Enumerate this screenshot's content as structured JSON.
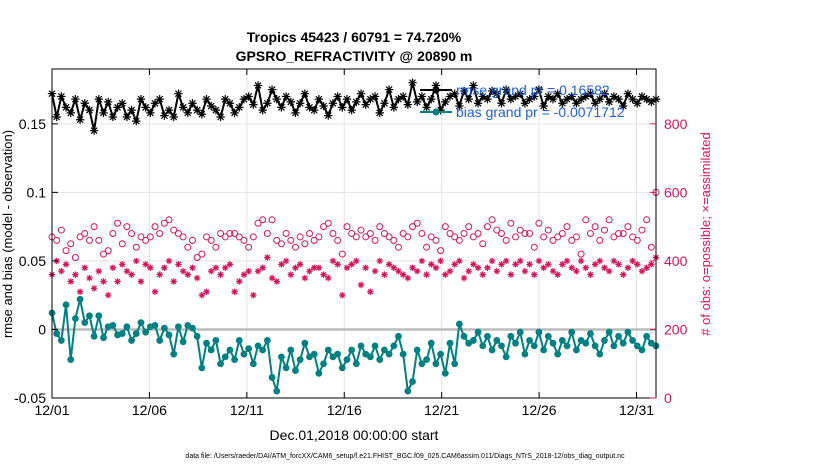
{
  "chart_data": {
    "type": "line",
    "title_lines": [
      "Tropics 45423 / 60791 = 74.720%",
      "GPSRO_REFRACTIVITY @ 20890 m"
    ],
    "xlabel": "Dec.01,2018 00:00:00 start",
    "ylabel_left": "rmse and bias (model - observation)",
    "ylabel_right": "# of obs: o=possible; ×=assimilated",
    "x_ticks": [
      "12/01",
      "12/06",
      "12/11",
      "12/16",
      "12/21",
      "12/26",
      "12/31"
    ],
    "x_tick_days": [
      0,
      5,
      10,
      15,
      20,
      25,
      30
    ],
    "xlim": [
      0,
      31
    ],
    "ylim_left": [
      -0.05,
      0.19
    ],
    "y_ticks_left": [
      -0.05,
      0,
      0.05,
      0.1,
      0.15
    ],
    "y_tick_labels_left": [
      "-0.05",
      "0",
      "0.05",
      "0.1",
      "0.15"
    ],
    "ylim_right": [
      0,
      960
    ],
    "y_ticks_right": [
      0,
      200,
      400,
      600,
      800
    ],
    "grid": true,
    "legend_position": "top-right",
    "legend": [
      {
        "label": "rmse grand pr = 0.16582",
        "color": "#000000"
      },
      {
        "label": "bias grand pr = -0.0071712",
        "color": "#008080"
      }
    ],
    "footnote": "data file: /Users/raeder/DAI/ATM_forcXX/CAM6_setup/f.e21.FHIST_BGC.f09_025.CAM6assim.011/Diags_NTrS_2018-12/obs_diag_output.nc",
    "series": [
      {
        "name": "rmse",
        "axis": "left",
        "color": "#000000",
        "marker": "star",
        "line": true,
        "values": [
          0.172,
          0.155,
          0.17,
          0.162,
          0.158,
          0.168,
          0.153,
          0.165,
          0.16,
          0.145,
          0.168,
          0.158,
          0.166,
          0.155,
          0.162,
          0.165,
          0.155,
          0.16,
          0.152,
          0.168,
          0.162,
          0.158,
          0.165,
          0.168,
          0.156,
          0.16,
          0.155,
          0.172,
          0.162,
          0.158,
          0.165,
          0.16,
          0.157,
          0.168,
          0.163,
          0.16,
          0.155,
          0.168,
          0.165,
          0.158,
          0.162,
          0.168,
          0.17,
          0.164,
          0.178,
          0.16,
          0.165,
          0.175,
          0.168,
          0.162,
          0.17,
          0.166,
          0.158,
          0.165,
          0.172,
          0.162,
          0.16,
          0.168,
          0.163,
          0.156,
          0.165,
          0.17,
          0.162,
          0.168,
          0.16,
          0.166,
          0.172,
          0.164,
          0.168,
          0.17,
          0.158,
          0.165,
          0.175,
          0.162,
          0.168,
          0.17,
          0.164,
          0.18,
          0.166,
          0.17,
          0.162,
          0.168,
          0.178,
          0.16,
          0.166,
          0.17,
          0.172,
          0.163,
          0.174,
          0.168,
          0.178,
          0.165,
          0.17,
          0.168,
          0.174,
          0.172,
          0.165,
          0.175,
          0.168,
          0.17,
          0.172,
          0.165,
          0.168,
          0.17,
          0.175,
          0.163,
          0.17,
          0.168,
          0.172,
          0.165,
          0.168,
          0.17,
          0.165,
          0.168,
          0.17,
          0.172,
          0.165,
          0.168,
          0.172,
          0.166,
          0.17,
          0.168,
          0.163,
          0.172,
          0.168,
          0.165,
          0.17,
          0.168,
          0.166,
          0.168
        ]
      },
      {
        "name": "bias",
        "axis": "left",
        "color": "#008080",
        "marker": "dot",
        "line": true,
        "values": [
          0.012,
          -0.003,
          -0.008,
          0.018,
          -0.022,
          0.008,
          0.022,
          0.005,
          0.01,
          -0.005,
          0.01,
          -0.006,
          0.002,
          0.003,
          -0.004,
          -0.003,
          0.002,
          -0.008,
          -0.003,
          0.005,
          -0.002,
          0.002,
          0.003,
          -0.008,
          0.001,
          -0.004,
          -0.018,
          0.002,
          -0.009,
          0.003,
          0.001,
          -0.005,
          -0.028,
          -0.01,
          -0.015,
          -0.008,
          -0.025,
          -0.02,
          -0.015,
          -0.022,
          -0.008,
          -0.018,
          -0.014,
          -0.025,
          -0.012,
          -0.015,
          -0.008,
          -0.035,
          -0.045,
          -0.02,
          -0.028,
          -0.015,
          -0.03,
          -0.022,
          -0.01,
          -0.02,
          -0.018,
          -0.032,
          -0.025,
          -0.015,
          -0.02,
          -0.018,
          -0.028,
          -0.022,
          -0.015,
          -0.025,
          -0.012,
          -0.018,
          -0.02,
          -0.012,
          -0.022,
          -0.015,
          -0.018,
          -0.012,
          -0.005,
          -0.018,
          -0.045,
          -0.038,
          -0.015,
          -0.025,
          -0.022,
          -0.01,
          -0.025,
          -0.018,
          -0.032,
          -0.01,
          -0.025,
          0.004,
          -0.005,
          -0.01,
          -0.008,
          -0.002,
          -0.012,
          -0.005,
          -0.015,
          -0.008,
          -0.012,
          -0.02,
          -0.005,
          -0.01,
          -0.002,
          -0.018,
          -0.008,
          -0.012,
          -0.002,
          -0.015,
          -0.005,
          -0.01,
          -0.018,
          -0.008,
          -0.012,
          -0.002,
          -0.015,
          -0.008,
          -0.01,
          -0.003,
          -0.012,
          -0.018,
          -0.008,
          -0.002,
          -0.012,
          -0.005,
          -0.01,
          -0.002,
          -0.008,
          -0.012,
          -0.015,
          -0.005,
          -0.01,
          -0.012
        ]
      },
      {
        "name": "possible",
        "axis": "right",
        "color": "#d4145a",
        "marker": "circle",
        "line": false,
        "values": [
          470,
          460,
          490,
          430,
          450,
          410,
          470,
          480,
          460,
          500,
          460,
          420,
          430,
          480,
          510,
          450,
          500,
          480,
          440,
          470,
          460,
          470,
          500,
          480,
          510,
          520,
          490,
          480,
          470,
          440,
          460,
          410,
          420,
          470,
          460,
          440,
          480,
          470,
          480,
          480,
          470,
          460,
          440,
          470,
          510,
          520,
          480,
          520,
          460,
          450,
          480,
          460,
          440,
          470,
          450,
          480,
          460,
          470,
          500,
          510,
          480,
          460,
          420,
          500,
          480,
          470,
          490,
          470,
          480,
          460,
          500,
          480,
          470,
          460,
          440,
          480,
          470,
          500,
          510,
          480,
          440,
          470,
          460,
          430,
          500,
          480,
          470,
          460,
          480,
          500,
          470,
          480,
          450,
          500,
          520,
          490,
          480,
          460,
          510,
          470,
          490,
          480,
          480,
          440,
          510,
          470,
          490,
          460,
          470,
          480,
          500,
          460,
          470,
          420,
          520,
          480,
          500,
          460,
          490,
          520,
          470,
          480,
          480,
          500,
          470,
          460,
          490,
          520,
          440,
          600
        ]
      },
      {
        "name": "assimilated",
        "axis": "right",
        "color": "#d4145a",
        "marker": "star",
        "line": false,
        "values": [
          360,
          400,
          370,
          390,
          340,
          360,
          310,
          380,
          350,
          320,
          370,
          340,
          300,
          380,
          340,
          390,
          370,
          360,
          400,
          340,
          390,
          380,
          310,
          360,
          380,
          400,
          340,
          390,
          370,
          360,
          380,
          350,
          300,
          310,
          370,
          380,
          360,
          380,
          390,
          310,
          340,
          360,
          370,
          300,
          370,
          380,
          410,
          350,
          340,
          390,
          400,
          360,
          380,
          390,
          350,
          370,
          380,
          380,
          360,
          350,
          400,
          390,
          300,
          380,
          390,
          400,
          330,
          380,
          310,
          370,
          400,
          360,
          390,
          380,
          370,
          360,
          350,
          380,
          370,
          400,
          360,
          390,
          380,
          400,
          360,
          370,
          390,
          400,
          350,
          370,
          390,
          380,
          360,
          380,
          400,
          370,
          390,
          400,
          360,
          390,
          400,
          370,
          390,
          360,
          400,
          380,
          390,
          370,
          360,
          390,
          400,
          380,
          370,
          400,
          380,
          360,
          390,
          400,
          380,
          370,
          400,
          390,
          360,
          380,
          400,
          390,
          370,
          380,
          390,
          410
        ]
      }
    ]
  }
}
